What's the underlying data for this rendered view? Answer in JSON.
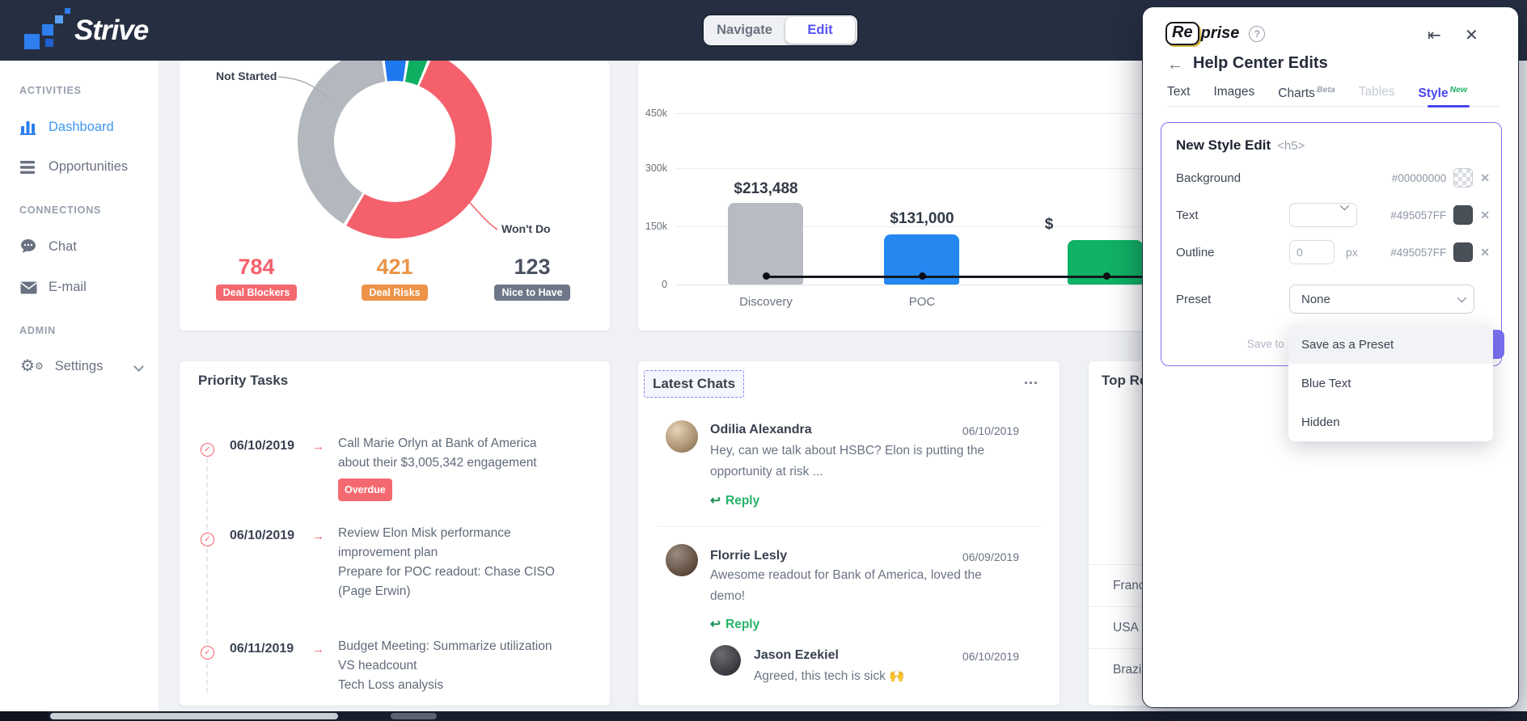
{
  "navbar": {
    "brand": "Strive",
    "mode_toggle": {
      "navigate": "Navigate",
      "edit": "Edit"
    }
  },
  "sidebar": {
    "sections": {
      "activities": "ACTIVITIES",
      "connections": "CONNECTIONS",
      "admin": "ADMIN"
    },
    "items": [
      {
        "label": "Dashboard",
        "active": true
      },
      {
        "label": "Opportunities"
      },
      {
        "label": "Chat"
      },
      {
        "label": "E-mail"
      },
      {
        "label": "Settings"
      }
    ]
  },
  "chart_data": [
    {
      "type": "donut",
      "start_angle": -7,
      "segments": [
        {
          "label": "",
          "color": "#1E78F0",
          "percent": 4.7
        },
        {
          "label": "",
          "color": "#0FAF62",
          "percent": 3.9
        },
        {
          "label": "Won't Do",
          "color": "#F4606C",
          "percent": 52.2
        },
        {
          "label": "Not Started",
          "color": "#B3B7BE",
          "percent": 39.2
        }
      ],
      "callouts": {
        "not_started": "Not Started",
        "wont_do": "Won't Do"
      },
      "stats": [
        {
          "value": "784",
          "badge": "Deal Blockers",
          "value_color": "#f4606c",
          "badge_bg": "#f4696f"
        },
        {
          "value": "421",
          "badge": "Deal Risks",
          "value_color": "#ec9348",
          "badge_bg": "#ec9348"
        },
        {
          "value": "123",
          "badge": "Nice to Have",
          "value_color": "#4a5260",
          "badge_bg": "#6e7787"
        }
      ]
    },
    {
      "type": "bar",
      "categories": [
        "Discovery",
        "POC",
        ""
      ],
      "values": [
        213488,
        131000,
        117000
      ],
      "value_labels": [
        "$213,488",
        "$131,000",
        "$"
      ],
      "colors": [
        "#b8bcc2",
        "#2488f0",
        "#10b265"
      ],
      "y_ticks": [
        "450k",
        "300k",
        "150k",
        "0"
      ],
      "ylim": [
        0,
        450000
      ],
      "grid": true,
      "annotation": "black connector line with dot marker on each bar",
      "note": "third bar value estimated; its label and category are hidden behind overlay panel"
    }
  ],
  "priority_tasks": {
    "title": "Priority Tasks",
    "tasks": [
      {
        "date": "06/10/2019",
        "lines": [
          "Call Marie Orlyn at Bank of America",
          "about their $3,005,342 engagement"
        ],
        "badge": "Overdue"
      },
      {
        "date": "06/10/2019",
        "lines": [
          "Review Elon Misk performance",
          "improvement plan",
          "Prepare for POC readout: Chase CISO",
          "(Page Erwin)"
        ]
      },
      {
        "date": "06/11/2019",
        "lines": [
          "Budget Meeting: Summarize utilization",
          "VS headcount",
          "Tech Loss analysis"
        ]
      }
    ]
  },
  "latest_chats": {
    "title": "Latest Chats",
    "menu": "...",
    "reply_label": "Reply",
    "chats": [
      {
        "name": "Odilia Alexandra",
        "date": "06/10/2019",
        "message": "Hey, can we talk about HSBC? Elon is putting the opportunity at risk ..."
      },
      {
        "name": "Florrie Lesly",
        "date": "06/09/2019",
        "message": "Awesome readout for Bank of America, loved the demo!"
      },
      {
        "name": "Jason Ezekiel",
        "date": "06/10/2019",
        "message": "Agreed, this tech is sick 🙌"
      }
    ]
  },
  "top_regions": {
    "title": "Top Re",
    "rows": [
      "Franc",
      "USA",
      "Brazil"
    ]
  },
  "reprise_panel": {
    "brand_re": "Re",
    "brand_rest": "prise",
    "help_icon": "?",
    "collapse_icon": "⇤",
    "close_icon": "✕",
    "back_icon": "←",
    "title": "Help Center Edits",
    "tabs": [
      {
        "label": "Text"
      },
      {
        "label": "Images"
      },
      {
        "label": "Charts",
        "sup": "Beta"
      },
      {
        "label": "Tables",
        "disabled": true
      },
      {
        "label": "Style",
        "sup": "New",
        "active": true
      }
    ],
    "editor": {
      "title": "New Style Edit",
      "tag": "<h5>",
      "background_label": "Background",
      "background_hex": "#00000000",
      "text_label": "Text",
      "text_hex": "#495057FF",
      "outline_label": "Outline",
      "outline_value": "0",
      "outline_unit": "px",
      "outline_hex": "#495057FF",
      "preset_label": "Preset",
      "preset_value": "None",
      "save_to": "Save to",
      "clear_icon": "✕"
    },
    "preset_menu": [
      "Save as a Preset",
      "Blue Text",
      "Hidden"
    ]
  }
}
